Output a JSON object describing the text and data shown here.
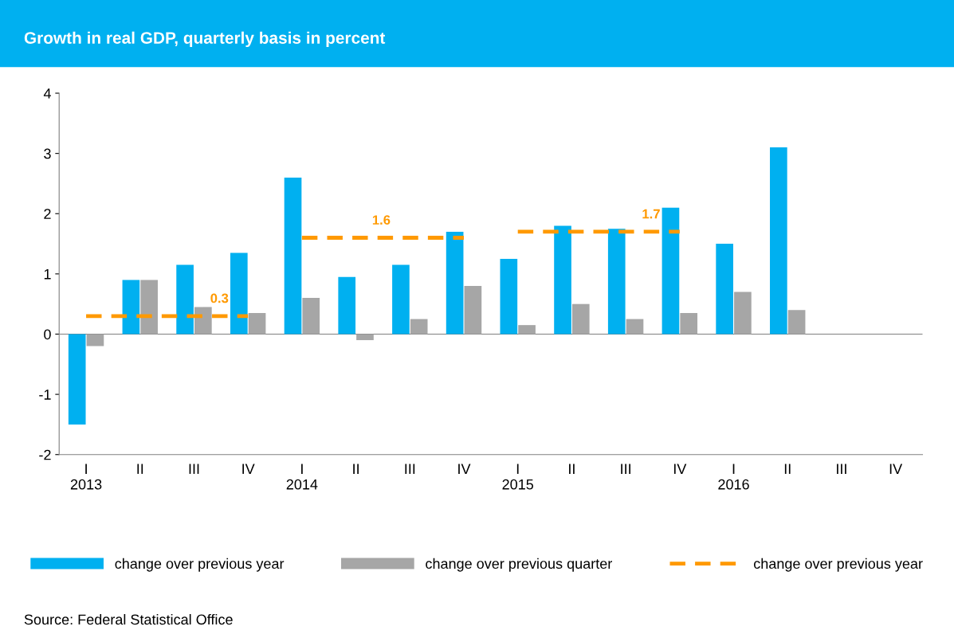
{
  "chart_data": {
    "type": "bar",
    "title": "Growth in real GDP, quarterly basis in percent",
    "categories": [
      "I\n2013",
      "II",
      "III",
      "IV",
      "I\n2014",
      "II",
      "III",
      "IV",
      "I\n2015",
      "II",
      "III",
      "IV",
      "I\n2016",
      "II",
      "III",
      "IV"
    ],
    "series": [
      {
        "name": "change over previous year",
        "color": "#00b0f0",
        "values": [
          -1.5,
          0.9,
          1.15,
          1.35,
          2.6,
          0.95,
          1.15,
          1.7,
          1.25,
          1.8,
          1.75,
          2.1,
          1.5,
          3.1,
          null,
          null
        ]
      },
      {
        "name": "change over previous quarter",
        "color": "#a6a6a6",
        "values": [
          -0.2,
          0.9,
          0.45,
          0.35,
          0.6,
          -0.1,
          0.25,
          0.8,
          0.15,
          0.5,
          0.25,
          0.35,
          0.7,
          0.4,
          null,
          null
        ]
      },
      {
        "name": "change over previous year",
        "type": "line",
        "color": "#ff9900",
        "line_style": "dashed",
        "values": [
          0.3,
          0.3,
          0.3,
          0.3,
          1.6,
          1.6,
          1.6,
          1.6,
          1.7,
          1.7,
          1.7,
          1.7,
          null,
          null,
          null,
          null
        ],
        "value_labels": [
          null,
          null,
          "0.3",
          null,
          null,
          "1.6",
          null,
          null,
          null,
          null,
          "1.7",
          null,
          null,
          null,
          null,
          null
        ]
      }
    ],
    "ref_lines": [
      {
        "axis": "y",
        "value": 0,
        "color": "#808080"
      }
    ],
    "ylim": [
      -2,
      4
    ],
    "yticks": [
      -2,
      -1,
      0,
      1,
      2,
      3,
      4
    ],
    "grid": false,
    "legend": "bottom",
    "annotations": [
      "Source: Federal Statistical Office"
    ]
  }
}
